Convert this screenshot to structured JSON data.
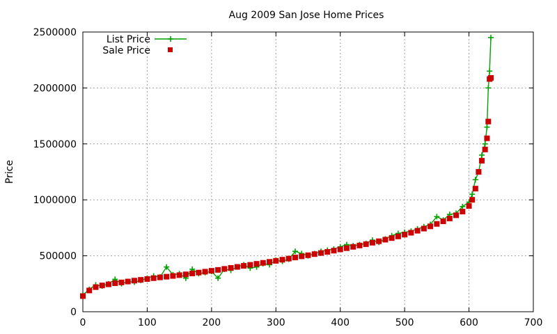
{
  "chart_data": {
    "type": "line",
    "title": "Aug 2009 San Jose Home Prices",
    "xlabel": "",
    "ylabel": "Price",
    "xlim": [
      0,
      700
    ],
    "ylim": [
      0,
      2500000
    ],
    "x_ticks": [
      "0",
      "100",
      "200",
      "300",
      "400",
      "500",
      "600",
      "700"
    ],
    "y_ticks": [
      "0",
      "500000",
      "1000000",
      "1500000",
      "2000000",
      "2500000"
    ],
    "grid": true,
    "legend_position": "top-left",
    "colors": {
      "list": "#00a000",
      "sale": "#cc0000"
    },
    "series": [
      {
        "name": "List Price",
        "style": "lines+points",
        "marker": "plus",
        "x": [
          0,
          10,
          20,
          30,
          40,
          50,
          60,
          70,
          80,
          90,
          100,
          110,
          120,
          130,
          140,
          150,
          160,
          170,
          180,
          190,
          200,
          210,
          220,
          230,
          240,
          250,
          260,
          270,
          280,
          290,
          300,
          310,
          320,
          330,
          340,
          350,
          360,
          370,
          380,
          390,
          400,
          410,
          420,
          430,
          440,
          450,
          460,
          470,
          480,
          490,
          500,
          510,
          520,
          530,
          540,
          550,
          560,
          570,
          580,
          590,
          600,
          605,
          610,
          615,
          620,
          625,
          628,
          630,
          632,
          634
        ],
        "values": [
          150000,
          200000,
          240000,
          230000,
          250000,
          290000,
          250000,
          270000,
          265000,
          280000,
          300000,
          320000,
          310000,
          400000,
          330000,
          340000,
          300000,
          380000,
          340000,
          350000,
          360000,
          300000,
          380000,
          370000,
          400000,
          420000,
          390000,
          400000,
          430000,
          420000,
          460000,
          450000,
          470000,
          540000,
          520000,
          500000,
          520000,
          540000,
          550000,
          560000,
          580000,
          600000,
          590000,
          600000,
          610000,
          640000,
          620000,
          650000,
          680000,
          700000,
          710000,
          720000,
          740000,
          760000,
          780000,
          850000,
          820000,
          870000,
          880000,
          940000,
          980000,
          1050000,
          1180000,
          1250000,
          1400000,
          1500000,
          1650000,
          2000000,
          2150000,
          2450000
        ]
      },
      {
        "name": "Sale Price",
        "style": "points",
        "marker": "square",
        "x": [
          0,
          10,
          20,
          30,
          40,
          50,
          60,
          70,
          80,
          90,
          100,
          110,
          120,
          130,
          140,
          150,
          160,
          170,
          180,
          190,
          200,
          210,
          220,
          230,
          240,
          250,
          260,
          270,
          280,
          290,
          300,
          310,
          320,
          330,
          340,
          350,
          360,
          370,
          380,
          390,
          400,
          410,
          420,
          430,
          440,
          450,
          460,
          470,
          480,
          490,
          500,
          510,
          520,
          530,
          540,
          550,
          560,
          570,
          580,
          590,
          600,
          605,
          610,
          615,
          620,
          625,
          628,
          630,
          632,
          634
        ],
        "values": [
          140000,
          190000,
          220000,
          235000,
          245000,
          255000,
          262000,
          270000,
          278000,
          285000,
          292000,
          300000,
          307000,
          313000,
          320000,
          327000,
          334000,
          342000,
          350000,
          358000,
          366000,
          374000,
          383000,
          392000,
          401000,
          410000,
          419000,
          428000,
          437000,
          446000,
          455000,
          465000,
          475000,
          485000,
          495000,
          505000,
          515000,
          525000,
          535000,
          546000,
          557000,
          568000,
          580000,
          592000,
          604000,
          617000,
          630000,
          644000,
          658000,
          673000,
          689000,
          706000,
          724000,
          743000,
          763000,
          785000,
          808000,
          833000,
          862000,
          895000,
          945000,
          1000000,
          1100000,
          1250000,
          1350000,
          1450000,
          1550000,
          1700000,
          2080000,
          2090000
        ]
      }
    ]
  }
}
